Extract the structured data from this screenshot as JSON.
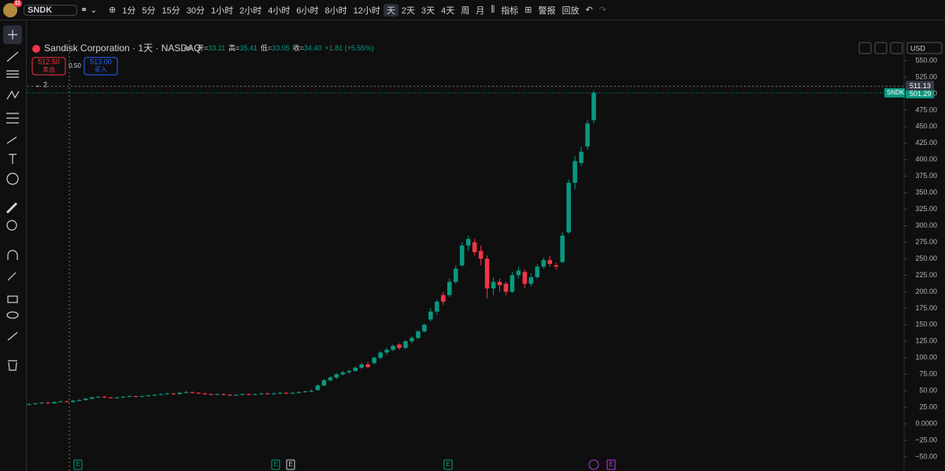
{
  "toolbar": {
    "badge": "11",
    "symbol": "SNDK",
    "intervals": [
      "1分",
      "5分",
      "15分",
      "30分",
      "1小时",
      "2小时",
      "4小时",
      "6小时",
      "8小时",
      "12小时",
      "天",
      "2天",
      "3天",
      "4天",
      "周",
      "月"
    ],
    "indicators": "指标",
    "alert": "警报",
    "replay": "回放"
  },
  "legend": {
    "title": "Sandisk Corporation · 1天 · NASDAQ",
    "open_label": "开=",
    "open": "33.11",
    "high_label": "高=",
    "high": "35.41",
    "low_label": "低=",
    "low": "33.05",
    "close_label": "收=",
    "close": "34.40",
    "change": "+1.81 (+5.55%)",
    "sell_price": "512.50",
    "sell_label": "卖出",
    "spread": "0.50",
    "buy_price": "513.00",
    "buy_label": "买入",
    "collapsed_count": "2"
  },
  "currency": "USD",
  "events": [
    "E",
    "E",
    "E",
    "E",
    "E"
  ],
  "chart_data": {
    "type": "candlestick",
    "up_color": "#089981",
    "down_color": "#f23645",
    "ylim": [
      -50,
      565
    ],
    "yticks": [
      {
        "value": 550,
        "label": "550.00"
      },
      {
        "value": 525,
        "label": "525.00"
      },
      {
        "value": 500,
        "label": "500.00"
      },
      {
        "value": 475,
        "label": "475.00"
      },
      {
        "value": 450,
        "label": "450.00"
      },
      {
        "value": 425,
        "label": "425.00"
      },
      {
        "value": 400,
        "label": "400.00"
      },
      {
        "value": 375,
        "label": "375.00"
      },
      {
        "value": 350,
        "label": "350.00"
      },
      {
        "value": 325,
        "label": "325.00"
      },
      {
        "value": 300,
        "label": "300.00"
      },
      {
        "value": 275,
        "label": "275.00"
      },
      {
        "value": 250,
        "label": "250.00"
      },
      {
        "value": 225,
        "label": "225.00"
      },
      {
        "value": 200,
        "label": "200.00"
      },
      {
        "value": 175,
        "label": "175.00"
      },
      {
        "value": 150,
        "label": "150.00"
      },
      {
        "value": 125,
        "label": "125.00"
      },
      {
        "value": 100,
        "label": "100.00"
      },
      {
        "value": 75,
        "label": "75.00"
      },
      {
        "value": 50,
        "label": "50.00"
      },
      {
        "value": 25,
        "label": "25.00"
      },
      {
        "value": 0,
        "label": "0.0000"
      },
      {
        "value": -25,
        "label": "−25.00"
      },
      {
        "value": -50,
        "label": "−50.00"
      }
    ],
    "crosshair": {
      "value": 511.13,
      "label": "511.13"
    },
    "last_price": {
      "value": 501.29,
      "label": "501.29",
      "symbol": "SNDK"
    },
    "ohlc": [
      [
        29,
        31,
        28,
        30
      ],
      [
        30,
        32,
        29,
        31
      ],
      [
        31,
        33,
        30,
        32
      ],
      [
        32,
        33,
        30,
        31
      ],
      [
        31,
        34,
        30,
        33
      ],
      [
        33,
        35,
        32,
        34
      ],
      [
        34,
        35,
        32,
        33
      ],
      [
        33,
        36,
        32,
        35
      ],
      [
        35,
        37,
        34,
        36
      ],
      [
        36,
        39,
        35,
        38
      ],
      [
        38,
        41,
        37,
        40
      ],
      [
        40,
        42,
        39,
        41
      ],
      [
        41,
        42,
        39,
        40
      ],
      [
        40,
        41,
        38,
        39
      ],
      [
        39,
        41,
        38,
        40
      ],
      [
        40,
        42,
        39,
        41
      ],
      [
        41,
        43,
        40,
        42
      ],
      [
        42,
        43,
        40,
        41
      ],
      [
        41,
        43,
        40,
        42
      ],
      [
        42,
        44,
        41,
        43
      ],
      [
        43,
        45,
        42,
        44
      ],
      [
        44,
        46,
        43,
        45
      ],
      [
        45,
        47,
        44,
        46
      ],
      [
        46,
        47,
        44,
        45
      ],
      [
        45,
        48,
        44,
        47
      ],
      [
        47,
        50,
        46,
        48
      ],
      [
        48,
        49,
        46,
        47
      ],
      [
        47,
        48,
        45,
        46
      ],
      [
        46,
        47,
        44,
        45
      ],
      [
        45,
        46,
        43,
        44
      ],
      [
        44,
        46,
        43,
        45
      ],
      [
        45,
        46,
        43,
        44
      ],
      [
        44,
        45,
        42,
        43
      ],
      [
        43,
        45,
        42,
        44
      ],
      [
        44,
        46,
        43,
        45
      ],
      [
        45,
        46,
        43,
        44
      ],
      [
        44,
        46,
        43,
        45
      ],
      [
        45,
        47,
        44,
        46
      ],
      [
        46,
        47,
        44,
        45
      ],
      [
        45,
        47,
        44,
        46
      ],
      [
        46,
        48,
        45,
        47
      ],
      [
        47,
        48,
        45,
        46
      ],
      [
        46,
        48,
        45,
        47
      ],
      [
        47,
        49,
        46,
        48
      ],
      [
        48,
        50,
        47,
        49
      ],
      [
        49,
        52,
        48,
        50
      ],
      [
        51,
        60,
        50,
        58
      ],
      [
        58,
        68,
        57,
        66
      ],
      [
        66,
        72,
        64,
        70
      ],
      [
        70,
        77,
        68,
        75
      ],
      [
        75,
        80,
        73,
        78
      ],
      [
        78,
        82,
        76,
        80
      ],
      [
        80,
        87,
        79,
        85
      ],
      [
        85,
        92,
        83,
        90
      ],
      [
        90,
        94,
        84,
        86
      ],
      [
        92,
        102,
        90,
        100
      ],
      [
        100,
        110,
        98,
        108
      ],
      [
        108,
        115,
        104,
        112
      ],
      [
        112,
        120,
        110,
        118
      ],
      [
        120,
        122,
        112,
        115
      ],
      [
        115,
        127,
        113,
        125
      ],
      [
        125,
        133,
        122,
        130
      ],
      [
        130,
        142,
        128,
        140
      ],
      [
        140,
        152,
        138,
        150
      ],
      [
        158,
        175,
        155,
        170
      ],
      [
        170,
        188,
        165,
        185
      ],
      [
        195,
        200,
        180,
        185
      ],
      [
        195,
        220,
        192,
        215
      ],
      [
        215,
        240,
        212,
        235
      ],
      [
        240,
        275,
        238,
        270
      ],
      [
        270,
        285,
        262,
        280
      ],
      [
        275,
        280,
        255,
        260
      ],
      [
        262,
        270,
        240,
        250
      ],
      [
        250,
        255,
        190,
        205
      ],
      [
        205,
        222,
        195,
        215
      ],
      [
        215,
        220,
        200,
        210
      ],
      [
        212,
        215,
        195,
        200
      ],
      [
        200,
        230,
        198,
        225
      ],
      [
        225,
        238,
        220,
        232
      ],
      [
        230,
        234,
        205,
        212
      ],
      [
        212,
        228,
        208,
        222
      ],
      [
        222,
        242,
        220,
        238
      ],
      [
        238,
        252,
        235,
        248
      ],
      [
        248,
        254,
        238,
        242
      ],
      [
        240,
        244,
        234,
        238
      ],
      [
        245,
        290,
        243,
        285
      ],
      [
        290,
        370,
        288,
        365
      ],
      [
        365,
        405,
        355,
        398
      ],
      [
        395,
        420,
        390,
        412
      ],
      [
        420,
        460,
        415,
        455
      ],
      [
        460,
        505,
        455,
        501.29
      ]
    ]
  }
}
